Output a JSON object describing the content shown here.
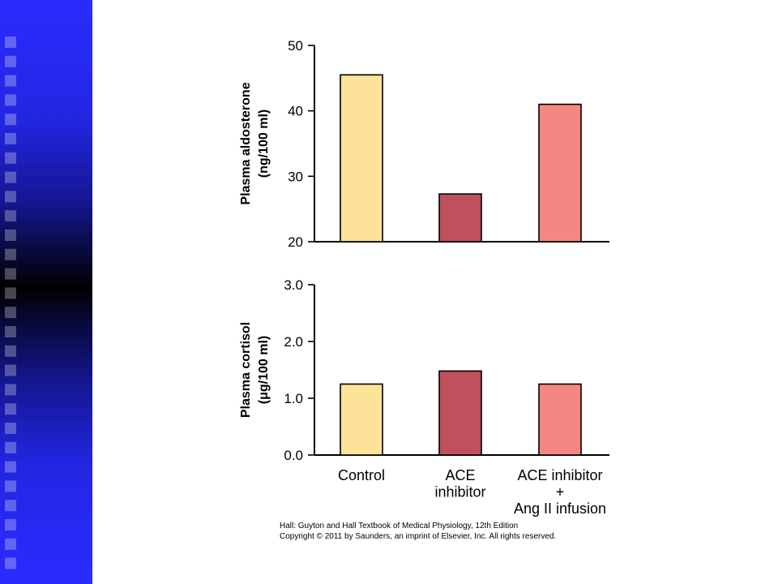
{
  "slide": {
    "sidebar_color": "#2a2cff",
    "credit_line1": "Hall: Guyton and Hall Textbook of Medical Physiology, 12th Edition",
    "credit_line2": "Copyright © 2011 by Saunders, an imprint of Elsevier, Inc. All rights reserved."
  },
  "chart_data": [
    {
      "type": "bar",
      "categories": [
        "Control",
        "ACE inhibitor",
        "ACE inhibitor + Ang II infusion"
      ],
      "category_lines": [
        [
          "Control"
        ],
        [
          "ACE",
          "inhibitor"
        ],
        [
          "ACE inhibitor",
          "+",
          "Ang II infusion"
        ]
      ],
      "values": [
        45.5,
        27.3,
        41.0
      ],
      "colors": [
        "#fde29a",
        "#c0505c",
        "#f48782"
      ],
      "ylabel_lines": [
        "Plasma aldosterone",
        "(ng/100 ml)"
      ],
      "yticks": [
        "20",
        "30",
        "40",
        "50"
      ],
      "ylim": [
        20,
        50
      ],
      "grid": false
    },
    {
      "type": "bar",
      "categories": [
        "Control",
        "ACE inhibitor",
        "ACE inhibitor + Ang II infusion"
      ],
      "values": [
        1.25,
        1.48,
        1.25
      ],
      "colors": [
        "#fde29a",
        "#c0505c",
        "#f48782"
      ],
      "ylabel_lines": [
        "Plasma cortisol",
        "(μg/100 ml)"
      ],
      "yticks": [
        "0.0",
        "1.0",
        "2.0",
        "3.0"
      ],
      "ylim": [
        0,
        3.0
      ],
      "grid": false
    }
  ]
}
